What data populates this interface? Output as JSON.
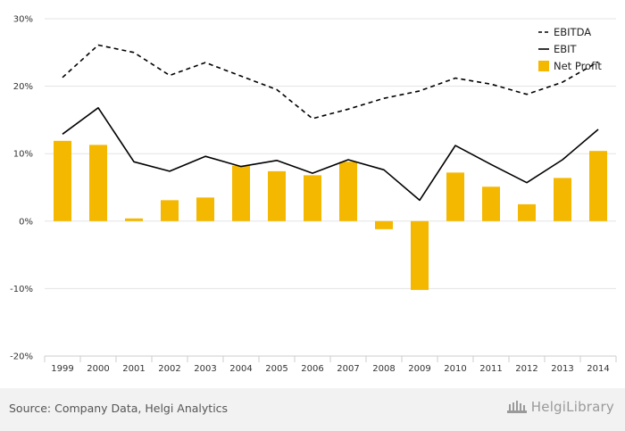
{
  "chart_data": {
    "type": "bar",
    "categories": [
      "1999",
      "2000",
      "2001",
      "2002",
      "2003",
      "2004",
      "2005",
      "2006",
      "2007",
      "2008",
      "2009",
      "2010",
      "2011",
      "2012",
      "2013",
      "2014"
    ],
    "series": [
      {
        "name": "EBITDA",
        "type": "line",
        "style": "dashed",
        "color": "#000000",
        "values": [
          21.3,
          26.1,
          25.0,
          21.6,
          23.5,
          21.5,
          19.5,
          15.2,
          16.6,
          18.2,
          19.3,
          21.2,
          20.3,
          18.8,
          20.6,
          23.6
        ]
      },
      {
        "name": "EBIT",
        "type": "line",
        "style": "solid",
        "color": "#000000",
        "values": [
          12.9,
          16.8,
          8.8,
          7.4,
          9.6,
          8.1,
          9.0,
          7.1,
          9.1,
          7.6,
          3.1,
          11.2,
          8.4,
          5.7,
          9.1,
          13.6
        ]
      },
      {
        "name": "Net Profit",
        "type": "bar",
        "color": "#f5b800",
        "values": [
          11.9,
          11.3,
          0.4,
          3.1,
          3.5,
          8.2,
          7.4,
          6.8,
          8.8,
          -1.2,
          -10.2,
          7.2,
          5.1,
          2.5,
          6.4,
          10.4
        ]
      }
    ],
    "ylim": [
      -20,
      30
    ],
    "yticks": [
      -20,
      -10,
      0,
      10,
      20,
      30
    ],
    "ytick_labels": [
      "-20%",
      "-10%",
      "0%",
      "10%",
      "20%",
      "30%"
    ],
    "legend_position": "top-right",
    "grid": true
  },
  "footer": {
    "source": "Source: Company Data, Helgi Analytics",
    "brand": "HelgiLibrary"
  }
}
